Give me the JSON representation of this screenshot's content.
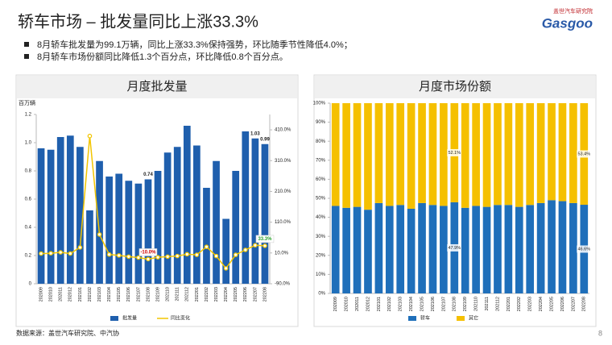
{
  "header": {
    "title": "轿车市场 – 批发量同比上涨33.3%",
    "logo_cn": "盖世汽车研究院",
    "logo_en": "Gasgoo"
  },
  "bullets": [
    "8月轿车批发量为99.1万辆，同比上涨33.3%保持强势，环比随季节性降低4.0%；",
    "8月轿车市场份额同比降低1.3个百分点，环比降低0.8个百分点。"
  ],
  "chart_data": [
    {
      "type": "bar_line",
      "title": "月度批发量",
      "y_label": "百万辆",
      "categories": [
        "202009",
        "202010",
        "202011",
        "202012",
        "202101",
        "202102",
        "202103",
        "202104",
        "202105",
        "202106",
        "202107",
        "202108",
        "202109",
        "202110",
        "202111",
        "202112",
        "202201",
        "202202",
        "202203",
        "202204",
        "202205",
        "202206",
        "202207",
        "202208"
      ],
      "series": [
        {
          "name": "批发量",
          "color": "#1f5fad",
          "values": [
            0.96,
            0.95,
            1.04,
            1.05,
            0.97,
            0.52,
            0.87,
            0.76,
            0.78,
            0.73,
            0.71,
            0.74,
            0.8,
            0.93,
            0.97,
            1.12,
            0.98,
            0.68,
            0.87,
            0.46,
            0.8,
            1.08,
            1.03,
            0.99
          ],
          "value_labels": [
            null,
            null,
            null,
            null,
            null,
            null,
            null,
            null,
            null,
            null,
            null,
            "0.74",
            null,
            null,
            null,
            null,
            null,
            null,
            null,
            null,
            null,
            null,
            "1.03",
            "0.99"
          ]
        },
        {
          "name": "同比变化",
          "color": "#f2c500",
          "axis": "y2",
          "values": [
            8,
            9,
            12,
            8,
            28,
            390,
            70,
            5,
            2,
            -2,
            -5,
            -10,
            -4,
            -2,
            0,
            6,
            4,
            30,
            0,
            -40,
            4,
            20,
            35,
            33.3
          ],
          "value_labels": [
            null,
            null,
            null,
            null,
            null,
            null,
            null,
            null,
            null,
            null,
            null,
            "-10.0%",
            null,
            null,
            null,
            null,
            null,
            null,
            null,
            null,
            null,
            null,
            null,
            "33.3%"
          ]
        }
      ],
      "ylim": [
        0,
        1.2
      ],
      "yticks": [
        0,
        0.2,
        0.4,
        0.6,
        0.8,
        {
          "value": 1,
          "label": "1.0"
        },
        1.2
      ],
      "y2lim": [
        -90,
        460
      ],
      "y2ticks": [
        {
          "value": -90,
          "label": "-90.0%"
        },
        {
          "value": 10,
          "label": "10.0%"
        },
        {
          "value": 110,
          "label": "110.0%"
        },
        {
          "value": 210,
          "label": "210.0%"
        },
        {
          "value": 310,
          "label": "310.0%"
        },
        {
          "value": 410,
          "label": "410.0%"
        }
      ]
    },
    {
      "type": "stacked_bar",
      "title": "月度市场份额",
      "categories": [
        "202009",
        "202010",
        "202011",
        "202012",
        "202101",
        "202102",
        "202103",
        "202104",
        "202105",
        "202106",
        "202107",
        "202108",
        "202109",
        "202110",
        "202111",
        "202112",
        "202201",
        "202202",
        "202203",
        "202204",
        "202205",
        "202206",
        "202207",
        "202208"
      ],
      "series": [
        {
          "name": "轿车",
          "color": "#1f6fba",
          "values": [
            46,
            45,
            45.5,
            44,
            47.5,
            46,
            46.5,
            44.5,
            47.5,
            46.5,
            46,
            47.9,
            45,
            46,
            45.5,
            46.5,
            46.5,
            45.5,
            46.5,
            47.5,
            49,
            48.5,
            47.5,
            46.6
          ],
          "value_labels": [
            null,
            null,
            null,
            null,
            null,
            null,
            null,
            null,
            null,
            null,
            null,
            "47.9%",
            null,
            null,
            null,
            null,
            null,
            null,
            null,
            null,
            null,
            null,
            null,
            "46.6%"
          ]
        },
        {
          "name": "其它",
          "color": "#f5c000",
          "values": [
            54,
            55,
            54.5,
            56,
            52.5,
            54,
            53.5,
            55.5,
            52.5,
            53.5,
            54,
            52.1,
            55,
            54,
            54.5,
            53.5,
            53.5,
            54.5,
            53.5,
            52.5,
            51,
            51.5,
            52.5,
            53.4
          ],
          "value_labels": [
            null,
            null,
            null,
            null,
            null,
            null,
            null,
            null,
            null,
            null,
            null,
            "52.1%",
            null,
            null,
            null,
            null,
            null,
            null,
            null,
            null,
            null,
            null,
            null,
            "53.4%"
          ]
        }
      ],
      "ylim": [
        0,
        100
      ],
      "yticks": [
        {
          "value": 0,
          "label": "0%"
        },
        {
          "value": 10,
          "label": "10%"
        },
        {
          "value": 20,
          "label": "20%"
        },
        {
          "value": 30,
          "label": "30%"
        },
        {
          "value": 40,
          "label": "40%"
        },
        {
          "value": 50,
          "label": "50%"
        },
        {
          "value": 60,
          "label": "60%"
        },
        {
          "value": 70,
          "label": "70%"
        },
        {
          "value": 80,
          "label": "80%"
        },
        {
          "value": 90,
          "label": "90%"
        },
        {
          "value": 100,
          "label": "100%"
        }
      ]
    }
  ],
  "footer": {
    "source": "数据来源：盖世汽车研究院、中汽协",
    "page": "8"
  }
}
